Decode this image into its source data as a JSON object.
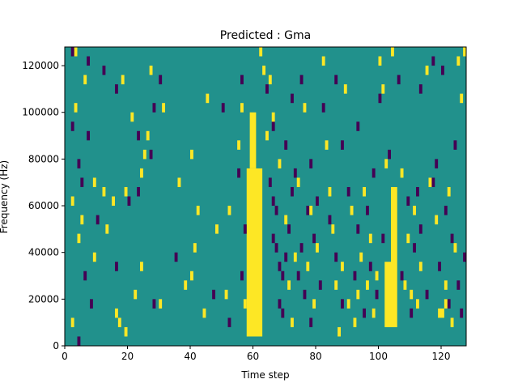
{
  "chart_data": {
    "type": "heatmap",
    "title": "Predicted : Gma",
    "xlabel": "Time step",
    "ylabel": "Frequency (Hz)",
    "xlim": [
      0,
      128
    ],
    "ylim": [
      0,
      128000
    ],
    "xticks": [
      0,
      20,
      40,
      60,
      80,
      100,
      120
    ],
    "xtick_labels": [
      "0",
      "20",
      "40",
      "60",
      "80",
      "100",
      "120"
    ],
    "yticks": [
      0,
      20000,
      40000,
      60000,
      80000,
      100000,
      120000
    ],
    "ytick_labels": [
      "0",
      "20000",
      "40000",
      "60000",
      "80000",
      "100000",
      "120000"
    ],
    "grid": false,
    "legend": "none",
    "colors": {
      "background": "#21918c",
      "high": "#fde725",
      "low": "#440154"
    },
    "cell_height_hz": 4000,
    "bands": [
      {
        "value": "high",
        "x": [
          58,
          63
        ],
        "y": [
          4000,
          76000
        ]
      },
      {
        "value": "high",
        "x": [
          59,
          61
        ],
        "y": [
          76000,
          100000
        ]
      },
      {
        "value": "high",
        "x": [
          104,
          106
        ],
        "y": [
          8000,
          68000
        ]
      },
      {
        "value": "high",
        "x": [
          102,
          104
        ],
        "y": [
          8000,
          36000
        ]
      }
    ],
    "cells": [
      {
        "value": "high",
        "x": 3,
        "y": 124000
      },
      {
        "value": "low",
        "x": 2,
        "y": 124000
      },
      {
        "value": "low",
        "x": 7,
        "y": 120000
      },
      {
        "value": "low",
        "x": 12,
        "y": 116000
      },
      {
        "value": "high",
        "x": 27,
        "y": 116000
      },
      {
        "value": "low",
        "x": 30,
        "y": 112000
      },
      {
        "value": "high",
        "x": 6,
        "y": 112000
      },
      {
        "value": "high",
        "x": 18,
        "y": 112000
      },
      {
        "value": "low",
        "x": 16,
        "y": 108000
      },
      {
        "value": "high",
        "x": 45,
        "y": 104000
      },
      {
        "value": "low",
        "x": 50,
        "y": 100000
      },
      {
        "value": "high",
        "x": 3,
        "y": 100000
      },
      {
        "value": "low",
        "x": 28,
        "y": 100000
      },
      {
        "value": "high",
        "x": 31,
        "y": 100000
      },
      {
        "value": "high",
        "x": 21,
        "y": 96000
      },
      {
        "value": "low",
        "x": 2,
        "y": 92000
      },
      {
        "value": "low",
        "x": 7,
        "y": 88000
      },
      {
        "value": "low",
        "x": 23,
        "y": 88000
      },
      {
        "value": "high",
        "x": 26,
        "y": 88000
      },
      {
        "value": "high",
        "x": 25,
        "y": 80000
      },
      {
        "value": "low",
        "x": 27,
        "y": 80000
      },
      {
        "value": "high",
        "x": 40,
        "y": 80000
      },
      {
        "value": "low",
        "x": 4,
        "y": 76000
      },
      {
        "value": "high",
        "x": 24,
        "y": 72000
      },
      {
        "value": "high",
        "x": 36,
        "y": 68000
      },
      {
        "value": "low",
        "x": 5,
        "y": 68000
      },
      {
        "value": "high",
        "x": 9,
        "y": 68000
      },
      {
        "value": "high",
        "x": 12,
        "y": 64000
      },
      {
        "value": "high",
        "x": 19,
        "y": 64000
      },
      {
        "value": "low",
        "x": 23,
        "y": 64000
      },
      {
        "value": "high",
        "x": 2,
        "y": 60000
      },
      {
        "value": "high",
        "x": 15,
        "y": 60000
      },
      {
        "value": "low",
        "x": 20,
        "y": 60000
      },
      {
        "value": "high",
        "x": 42,
        "y": 56000
      },
      {
        "value": "high",
        "x": 52,
        "y": 56000
      },
      {
        "value": "high",
        "x": 5,
        "y": 52000
      },
      {
        "value": "low",
        "x": 10,
        "y": 52000
      },
      {
        "value": "high",
        "x": 13,
        "y": 48000
      },
      {
        "value": "high",
        "x": 48,
        "y": 48000
      },
      {
        "value": "high",
        "x": 4,
        "y": 44000
      },
      {
        "value": "high",
        "x": 41,
        "y": 40000
      },
      {
        "value": "low",
        "x": 35,
        "y": 36000
      },
      {
        "value": "high",
        "x": 9,
        "y": 36000
      },
      {
        "value": "low",
        "x": 16,
        "y": 32000
      },
      {
        "value": "high",
        "x": 24,
        "y": 32000
      },
      {
        "value": "high",
        "x": 40,
        "y": 28000
      },
      {
        "value": "low",
        "x": 6,
        "y": 28000
      },
      {
        "value": "high",
        "x": 38,
        "y": 24000
      },
      {
        "value": "low",
        "x": 47,
        "y": 20000
      },
      {
        "value": "high",
        "x": 51,
        "y": 20000
      },
      {
        "value": "high",
        "x": 30,
        "y": 16000
      },
      {
        "value": "high",
        "x": 16,
        "y": 12000
      },
      {
        "value": "high",
        "x": 17,
        "y": 8000
      },
      {
        "value": "low",
        "x": 52,
        "y": 8000
      },
      {
        "value": "high",
        "x": 19,
        "y": 4000
      },
      {
        "value": "low",
        "x": 4,
        "y": 0
      },
      {
        "value": "high",
        "x": 2,
        "y": 8000
      },
      {
        "value": "low",
        "x": 8,
        "y": 16000
      },
      {
        "value": "high",
        "x": 22,
        "y": 20000
      },
      {
        "value": "low",
        "x": 28,
        "y": 16000
      },
      {
        "value": "high",
        "x": 44,
        "y": 12000
      },
      {
        "value": "low",
        "x": 57,
        "y": 48000
      },
      {
        "value": "low",
        "x": 56,
        "y": 112000
      },
      {
        "value": "high",
        "x": 56,
        "y": 100000
      },
      {
        "value": "low",
        "x": 55,
        "y": 72000
      },
      {
        "value": "high",
        "x": 55,
        "y": 84000
      },
      {
        "value": "low",
        "x": 56,
        "y": 28000
      },
      {
        "value": "high",
        "x": 57,
        "y": 16000
      },
      {
        "value": "low",
        "x": 65,
        "y": 68000
      },
      {
        "value": "low",
        "x": 66,
        "y": 44000
      },
      {
        "value": "low",
        "x": 67,
        "y": 40000
      },
      {
        "value": "low",
        "x": 68,
        "y": 32000
      },
      {
        "value": "low",
        "x": 69,
        "y": 28000
      },
      {
        "value": "low",
        "x": 69,
        "y": 12000
      },
      {
        "value": "low",
        "x": 68,
        "y": 16000
      },
      {
        "value": "low",
        "x": 67,
        "y": 56000
      },
      {
        "value": "low",
        "x": 66,
        "y": 60000
      },
      {
        "value": "low",
        "x": 70,
        "y": 36000
      },
      {
        "value": "low",
        "x": 71,
        "y": 48000
      },
      {
        "value": "low",
        "x": 72,
        "y": 64000
      },
      {
        "value": "low",
        "x": 73,
        "y": 72000
      },
      {
        "value": "low",
        "x": 74,
        "y": 28000
      },
      {
        "value": "low",
        "x": 75,
        "y": 40000
      },
      {
        "value": "low",
        "x": 76,
        "y": 20000
      },
      {
        "value": "low",
        "x": 77,
        "y": 56000
      },
      {
        "value": "low",
        "x": 78,
        "y": 8000
      },
      {
        "value": "low",
        "x": 79,
        "y": 44000
      },
      {
        "value": "low",
        "x": 80,
        "y": 60000
      },
      {
        "value": "low",
        "x": 81,
        "y": 24000
      },
      {
        "value": "low",
        "x": 64,
        "y": 108000
      },
      {
        "value": "low",
        "x": 66,
        "y": 92000
      },
      {
        "value": "low",
        "x": 70,
        "y": 84000
      },
      {
        "value": "low",
        "x": 72,
        "y": 104000
      },
      {
        "value": "low",
        "x": 75,
        "y": 112000
      },
      {
        "value": "low",
        "x": 78,
        "y": 76000
      },
      {
        "value": "low",
        "x": 82,
        "y": 100000
      },
      {
        "value": "low",
        "x": 84,
        "y": 52000
      },
      {
        "value": "low",
        "x": 86,
        "y": 36000
      },
      {
        "value": "low",
        "x": 88,
        "y": 16000
      },
      {
        "value": "low",
        "x": 90,
        "y": 64000
      },
      {
        "value": "low",
        "x": 92,
        "y": 28000
      },
      {
        "value": "low",
        "x": 93,
        "y": 48000
      },
      {
        "value": "low",
        "x": 95,
        "y": 12000
      },
      {
        "value": "low",
        "x": 96,
        "y": 56000
      },
      {
        "value": "low",
        "x": 97,
        "y": 32000
      },
      {
        "value": "low",
        "x": 98,
        "y": 72000
      },
      {
        "value": "low",
        "x": 99,
        "y": 20000
      },
      {
        "value": "low",
        "x": 101,
        "y": 44000
      },
      {
        "value": "low",
        "x": 103,
        "y": 80000
      },
      {
        "value": "low",
        "x": 107,
        "y": 28000
      },
      {
        "value": "low",
        "x": 109,
        "y": 60000
      },
      {
        "value": "low",
        "x": 110,
        "y": 12000
      },
      {
        "value": "low",
        "x": 111,
        "y": 40000
      },
      {
        "value": "low",
        "x": 112,
        "y": 64000
      },
      {
        "value": "low",
        "x": 113,
        "y": 48000
      },
      {
        "value": "low",
        "x": 115,
        "y": 20000
      },
      {
        "value": "low",
        "x": 117,
        "y": 68000
      },
      {
        "value": "low",
        "x": 118,
        "y": 76000
      },
      {
        "value": "low",
        "x": 119,
        "y": 32000
      },
      {
        "value": "low",
        "x": 121,
        "y": 56000
      },
      {
        "value": "low",
        "x": 122,
        "y": 16000
      },
      {
        "value": "low",
        "x": 123,
        "y": 44000
      },
      {
        "value": "low",
        "x": 124,
        "y": 84000
      },
      {
        "value": "low",
        "x": 125,
        "y": 24000
      },
      {
        "value": "low",
        "x": 126,
        "y": 12000
      },
      {
        "value": "low",
        "x": 127,
        "y": 36000
      },
      {
        "value": "low",
        "x": 120,
        "y": 116000
      },
      {
        "value": "low",
        "x": 117,
        "y": 120000
      },
      {
        "value": "low",
        "x": 113,
        "y": 108000
      },
      {
        "value": "low",
        "x": 106,
        "y": 112000
      },
      {
        "value": "low",
        "x": 100,
        "y": 104000
      },
      {
        "value": "low",
        "x": 93,
        "y": 92000
      },
      {
        "value": "low",
        "x": 88,
        "y": 84000
      },
      {
        "value": "low",
        "x": 86,
        "y": 112000
      },
      {
        "value": "high",
        "x": 65,
        "y": 112000
      },
      {
        "value": "high",
        "x": 64,
        "y": 88000
      },
      {
        "value": "high",
        "x": 63,
        "y": 116000
      },
      {
        "value": "high",
        "x": 62,
        "y": 124000
      },
      {
        "value": "high",
        "x": 66,
        "y": 96000
      },
      {
        "value": "high",
        "x": 68,
        "y": 76000
      },
      {
        "value": "high",
        "x": 70,
        "y": 52000
      },
      {
        "value": "high",
        "x": 71,
        "y": 24000
      },
      {
        "value": "high",
        "x": 72,
        "y": 8000
      },
      {
        "value": "high",
        "x": 73,
        "y": 36000
      },
      {
        "value": "high",
        "x": 74,
        "y": 68000
      },
      {
        "value": "high",
        "x": 76,
        "y": 100000
      },
      {
        "value": "high",
        "x": 77,
        "y": 32000
      },
      {
        "value": "high",
        "x": 78,
        "y": 56000
      },
      {
        "value": "high",
        "x": 79,
        "y": 16000
      },
      {
        "value": "high",
        "x": 80,
        "y": 40000
      },
      {
        "value": "high",
        "x": 82,
        "y": 120000
      },
      {
        "value": "high",
        "x": 83,
        "y": 84000
      },
      {
        "value": "high",
        "x": 84,
        "y": 64000
      },
      {
        "value": "high",
        "x": 85,
        "y": 48000
      },
      {
        "value": "high",
        "x": 86,
        "y": 24000
      },
      {
        "value": "high",
        "x": 87,
        "y": 4000
      },
      {
        "value": "high",
        "x": 88,
        "y": 32000
      },
      {
        "value": "high",
        "x": 89,
        "y": 108000
      },
      {
        "value": "high",
        "x": 90,
        "y": 16000
      },
      {
        "value": "high",
        "x": 91,
        "y": 56000
      },
      {
        "value": "high",
        "x": 92,
        "y": 8000
      },
      {
        "value": "high",
        "x": 93,
        "y": 20000
      },
      {
        "value": "high",
        "x": 94,
        "y": 36000
      },
      {
        "value": "high",
        "x": 95,
        "y": 64000
      },
      {
        "value": "high",
        "x": 96,
        "y": 24000
      },
      {
        "value": "high",
        "x": 97,
        "y": 44000
      },
      {
        "value": "high",
        "x": 98,
        "y": 12000
      },
      {
        "value": "high",
        "x": 99,
        "y": 28000
      },
      {
        "value": "high",
        "x": 100,
        "y": 120000
      },
      {
        "value": "high",
        "x": 101,
        "y": 108000
      },
      {
        "value": "high",
        "x": 102,
        "y": 76000
      },
      {
        "value": "high",
        "x": 104,
        "y": 124000
      },
      {
        "value": "high",
        "x": 107,
        "y": 72000
      },
      {
        "value": "high",
        "x": 108,
        "y": 24000
      },
      {
        "value": "high",
        "x": 109,
        "y": 44000
      },
      {
        "value": "high",
        "x": 110,
        "y": 20000
      },
      {
        "value": "high",
        "x": 111,
        "y": 56000
      },
      {
        "value": "high",
        "x": 112,
        "y": 16000
      },
      {
        "value": "high",
        "x": 113,
        "y": 32000
      },
      {
        "value": "high",
        "x": 115,
        "y": 116000
      },
      {
        "value": "high",
        "x": 116,
        "y": 68000
      },
      {
        "value": "high",
        "x": 118,
        "y": 52000
      },
      {
        "value": "high",
        "x": 119,
        "y": 12000
      },
      {
        "value": "high",
        "x": 121,
        "y": 24000
      },
      {
        "value": "high",
        "x": 122,
        "y": 64000
      },
      {
        "value": "high",
        "x": 123,
        "y": 8000
      },
      {
        "value": "high",
        "x": 124,
        "y": 40000
      },
      {
        "value": "high",
        "x": 125,
        "y": 120000
      },
      {
        "value": "high",
        "x": 126,
        "y": 104000
      },
      {
        "value": "high",
        "x": 127,
        "y": 124000
      },
      {
        "value": "high",
        "x": 120,
        "y": 12000
      },
      {
        "value": "high",
        "x": 121,
        "y": 16000
      }
    ]
  }
}
